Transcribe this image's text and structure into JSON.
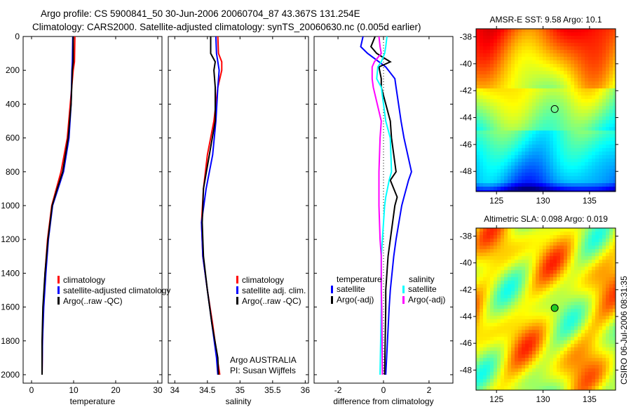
{
  "title_line1": "Argo profile: CS 5900841_50 30-Jun-2006 20060704_87 43.367S 131.254E",
  "title_line2": "Climatology: CARS2000. Satellite-adjusted climatology: synTS_20060630.nc (0.005d earlier)",
  "credit": "CSIRO 06-Jul-2006 08:31:35",
  "colors": {
    "climatology": "#ff0000",
    "satellite": "#0000ff",
    "argo": "#000000",
    "sal_satellite": "#00ffff",
    "sal_argo": "#ff00ff"
  },
  "chart_data": [
    {
      "type": "line",
      "name": "temperature-profile",
      "xlabel": "temperature",
      "ylabel": "",
      "xlim": [
        -2,
        31
      ],
      "ylim": [
        2050,
        0
      ],
      "xticks": [
        "0",
        "10",
        "20",
        "30"
      ],
      "yticks": [
        "0",
        "200",
        "400",
        "600",
        "800",
        "1000",
        "1200",
        "1400",
        "1600",
        "1800",
        "2000"
      ],
      "depth": [
        0,
        150,
        200,
        400,
        600,
        800,
        900,
        1000,
        1200,
        1400,
        1600,
        1800,
        2000
      ],
      "series": [
        {
          "name": "climatology",
          "color": "#ff0000",
          "values": [
            10.3,
            10.2,
            9.9,
            9.2,
            8.5,
            7.0,
            5.9,
            4.8,
            3.8,
            3.2,
            2.8,
            2.6,
            2.5
          ]
        },
        {
          "name": "satellite-adjusted climatology",
          "color": "#0000ff",
          "values": [
            9.8,
            9.7,
            9.6,
            9.4,
            8.9,
            7.6,
            6.3,
            5.0,
            4.0,
            3.4,
            2.9,
            2.6,
            2.5
          ]
        },
        {
          "name": "Argo(..raw -QC)",
          "color": "#000000",
          "values": [
            9.9,
            9.9,
            9.7,
            9.4,
            8.7,
            7.4,
            6.1,
            4.9,
            3.9,
            3.2,
            2.7,
            2.5,
            2.5
          ]
        }
      ],
      "legend": [
        "climatology",
        "satellite-adjusted climatology",
        "Argo(..raw -QC)"
      ]
    },
    {
      "type": "line",
      "name": "salinity-profile",
      "xlabel": "salinity",
      "xlim": [
        33.9,
        36.05
      ],
      "ylim": [
        2050,
        0
      ],
      "xticks": [
        "34",
        "34.5",
        "35",
        "35.5",
        "36"
      ],
      "depth": [
        0,
        100,
        150,
        200,
        300,
        500,
        700,
        900,
        1100,
        1300,
        1500,
        1700,
        1900,
        2000
      ],
      "series": [
        {
          "name": "climatology",
          "color": "#ff0000",
          "values": [
            34.66,
            34.67,
            34.72,
            34.72,
            34.66,
            34.6,
            34.5,
            34.44,
            34.41,
            34.43,
            34.5,
            34.58,
            34.65,
            34.69
          ]
        },
        {
          "name": "satellite adj. clim.",
          "color": "#0000ff",
          "values": [
            34.63,
            34.64,
            34.66,
            34.68,
            34.66,
            34.63,
            34.58,
            34.48,
            34.41,
            34.43,
            34.5,
            34.57,
            34.64,
            34.66
          ]
        },
        {
          "name": "Argo(..raw -QC)",
          "color": "#000000",
          "values": [
            34.55,
            34.55,
            34.62,
            34.6,
            34.62,
            34.62,
            34.53,
            34.44,
            34.42,
            34.44,
            34.5,
            34.57,
            34.66,
            34.67
          ]
        }
      ],
      "legend": [
        "climatology",
        "satellite adj. clim.",
        "Argo(..raw -QC)"
      ],
      "annotation": [
        "Argo AUSTRALIA",
        "PI: Susan Wijffels"
      ]
    },
    {
      "type": "line",
      "name": "difference-profile",
      "xlabel": "difference from climatology",
      "xlim": [
        -3.05,
        3.05
      ],
      "ylim": [
        2050,
        0
      ],
      "xticks": [
        "-2",
        "0",
        "2"
      ],
      "depth": [
        0,
        60,
        100,
        150,
        180,
        250,
        300,
        500,
        600,
        800,
        850,
        950,
        1000,
        1200,
        1300,
        1500,
        1600,
        2000
      ],
      "series": [
        {
          "name": "temperature satellite",
          "color": "#0000ff",
          "values": [
            -0.9,
            -1.0,
            -0.7,
            -0.2,
            0.1,
            0.5,
            0.55,
            0.77,
            0.9,
            1.23,
            1.1,
            0.9,
            0.8,
            0.55,
            0.45,
            0.3,
            0.25,
            0.1
          ]
        },
        {
          "name": "temperature Argo(-adj)",
          "color": "#000000",
          "values": [
            -0.37,
            -0.55,
            -0.3,
            0.3,
            -0.2,
            -0.1,
            -0.1,
            0.3,
            0.35,
            0.55,
            0.3,
            0.6,
            0.5,
            0.3,
            0.2,
            0.1,
            0.1,
            0.05
          ]
        },
        {
          "name": "salinity satellite",
          "color": "#00ffff",
          "values": [
            0.15,
            0.1,
            0.05,
            -0.1,
            -0.25,
            -0.3,
            -0.1,
            0.1,
            0.3,
            0.35,
            0.25,
            0.1,
            0.05,
            -0.05,
            -0.1,
            -0.1,
            -0.1,
            -0.15
          ]
        },
        {
          "name": "salinity Argo(-adj)",
          "color": "#ff00ff",
          "values": [
            -0.2,
            -0.15,
            -0.1,
            -0.4,
            -0.5,
            -0.5,
            -0.45,
            -0.1,
            -0.15,
            -0.2,
            -0.2,
            -0.2,
            -0.2,
            -0.15,
            -0.1,
            -0.1,
            -0.08,
            -0.05
          ]
        }
      ],
      "legend_headers": [
        "temperature",
        "salinity"
      ],
      "legend": [
        "satellite",
        "Argo(-adj)",
        "satellite",
        "Argo(-adj)"
      ]
    },
    {
      "type": "heatmap",
      "name": "sst-map",
      "title": "AMSR-E SST: 9.58 Argo: 10.1",
      "xlim": [
        122.8,
        137.8
      ],
      "ylim": [
        -49.5,
        -37.4
      ],
      "xticks": [
        "125",
        "130",
        "135"
      ],
      "yticks": [
        "-38",
        "-40",
        "-42",
        "-44",
        "-46",
        "-48"
      ],
      "marker": {
        "lon": 131.254,
        "lat": -43.367
      }
    },
    {
      "type": "heatmap",
      "name": "sla-map",
      "title": "Altimetric SLA: 0.098 Argo: 0.019",
      "xlim": [
        122.8,
        137.8
      ],
      "ylim": [
        -49.5,
        -37.4
      ],
      "xticks": [
        "125",
        "130",
        "135"
      ],
      "yticks": [
        "-38",
        "-40",
        "-42",
        "-44",
        "-46",
        "-48"
      ],
      "marker": {
        "lon": 131.254,
        "lat": -43.367
      }
    }
  ]
}
